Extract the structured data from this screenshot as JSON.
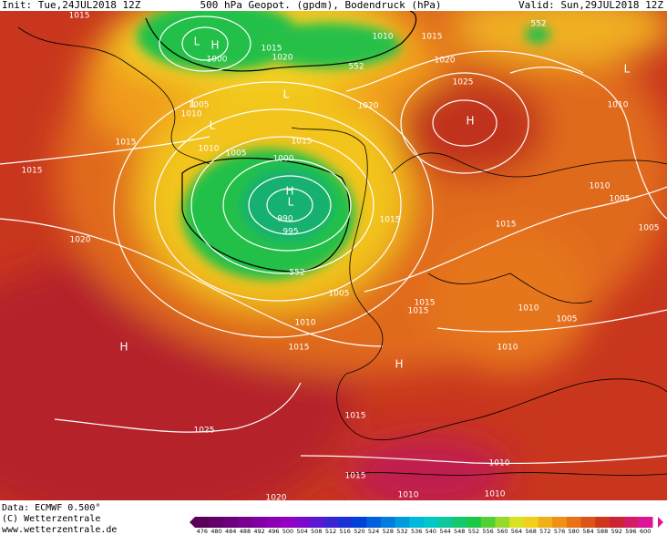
{
  "header": {
    "init": "Init: Tue,24JUL2018 12Z",
    "title": "500 hPa Geopot. (gpdm), Bodendruck (hPa)",
    "valid": "Valid: Sun,29JUL2018 12Z"
  },
  "map": {
    "labels": [
      "1015",
      "1010",
      "1015",
      "1020",
      "552",
      "1015",
      "1020",
      "1000",
      "1005",
      "1010",
      "1025",
      "1020",
      "1015",
      "1010",
      "1005",
      "1015",
      "1000",
      "1015",
      "990",
      "995",
      "1015",
      "1020",
      "552",
      "1005",
      "1015",
      "1010",
      "1005",
      "1005",
      "1010",
      "1015",
      "1015",
      "1010",
      "1005",
      "1010",
      "1015",
      "1010",
      "1025",
      "1015",
      "1010",
      "1015",
      "1010",
      "1010",
      "1020",
      "552"
    ],
    "pressure_centers": [
      "L",
      "H",
      "L",
      "L",
      "H",
      "H",
      "L",
      "H",
      "H",
      "L",
      "L"
    ]
  },
  "legend": {
    "labels": [
      "476",
      "480",
      "484",
      "488",
      "492",
      "496",
      "500",
      "504",
      "508",
      "512",
      "516",
      "520",
      "524",
      "528",
      "532",
      "536",
      "540",
      "544",
      "548",
      "552",
      "556",
      "560",
      "564",
      "568",
      "572",
      "576",
      "580",
      "584",
      "588",
      "592",
      "596",
      "600"
    ]
  },
  "footer": {
    "data": "Data: ECMWF  0.500°",
    "copyright": "(C) Wetterzentrale",
    "url": "www.wetterzentrale.de"
  }
}
